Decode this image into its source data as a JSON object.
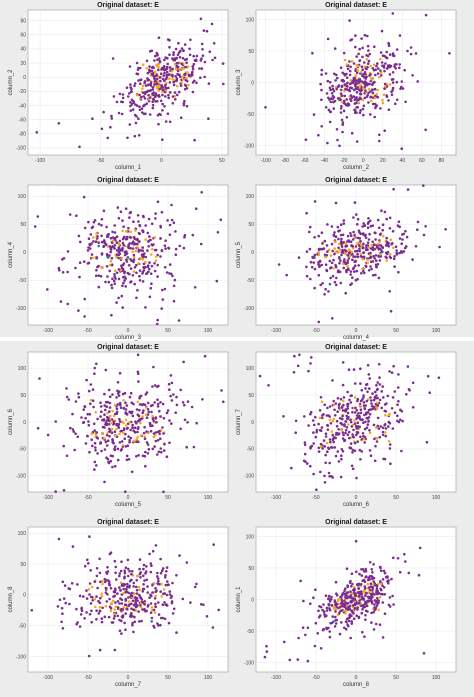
{
  "window": {
    "panel_background": "#ececec",
    "axes_background": "#ffffff",
    "grid_color": "#e6e6e6"
  },
  "series_colors": {
    "primary": "#7b2d8e",
    "secondary": "#f5a623",
    "tertiary": "#1f77b4"
  },
  "chart_data": [
    {
      "type": "scatter",
      "title": "Original dataset: E",
      "xlabel": "column_1",
      "ylabel": "column_2",
      "xlim": [
        -110,
        55
      ],
      "ylim": [
        -110,
        95
      ],
      "xticks": [
        -100,
        -50,
        0,
        50
      ],
      "yticks": [
        -100,
        -80,
        -60,
        -40,
        -20,
        0,
        20,
        40,
        60,
        80
      ],
      "grid": true,
      "x_center": 0,
      "y_center": -5,
      "x_spread": 16,
      "y_spread": 24,
      "correlation": 0.5,
      "n_points": 420
    },
    {
      "type": "scatter",
      "title": "Original dataset: E",
      "xlabel": "column_2",
      "ylabel": "column_3",
      "xlim": [
        -110,
        95
      ],
      "ylim": [
        -115,
        115
      ],
      "xticks": [
        -100,
        -80,
        -60,
        -40,
        -20,
        0,
        20,
        40,
        60,
        80
      ],
      "yticks": [
        -100,
        -50,
        0,
        50,
        100
      ],
      "grid": true,
      "x_center": 0,
      "y_center": 0,
      "x_spread": 20,
      "y_spread": 32,
      "correlation": 0.45,
      "n_points": 420
    },
    {
      "type": "scatter",
      "title": "Original dataset: E",
      "xlabel": "column_3",
      "ylabel": "column_4",
      "xlim": [
        -125,
        125
      ],
      "ylim": [
        -130,
        120
      ],
      "xticks": [
        -100,
        -50,
        0,
        50,
        100
      ],
      "yticks": [
        -100,
        -50,
        0,
        50,
        100
      ],
      "grid": true,
      "x_center": 0,
      "y_center": 0,
      "x_spread": 30,
      "y_spread": 35,
      "correlation": 0.05,
      "n_points": 420
    },
    {
      "type": "scatter",
      "title": "Original dataset: E",
      "xlabel": "column_4",
      "ylabel": "column_5",
      "xlim": [
        -125,
        125
      ],
      "ylim": [
        -130,
        120
      ],
      "xticks": [
        -100,
        -50,
        0,
        50,
        100
      ],
      "yticks": [
        -100,
        -50,
        0,
        50,
        100
      ],
      "grid": true,
      "x_center": 0,
      "y_center": 0,
      "x_spread": 32,
      "y_spread": 26,
      "correlation": 0.3,
      "n_points": 420
    },
    {
      "type": "scatter",
      "title": "Original dataset: E",
      "xlabel": "column_5",
      "ylabel": "column_6",
      "xlim": [
        -125,
        125
      ],
      "ylim": [
        -130,
        130
      ],
      "xticks": [
        -100,
        -50,
        0,
        50,
        100
      ],
      "yticks": [
        -100,
        -50,
        0,
        50,
        100
      ],
      "grid": true,
      "x_center": 0,
      "y_center": 0,
      "x_spread": 32,
      "y_spread": 38,
      "correlation": 0.1,
      "n_points": 420
    },
    {
      "type": "scatter",
      "title": "Original dataset: E",
      "xlabel": "column_6",
      "ylabel": "column_7",
      "xlim": [
        -125,
        125
      ],
      "ylim": [
        -130,
        130
      ],
      "xticks": [
        -100,
        -50,
        0,
        50,
        100
      ],
      "yticks": [
        -100,
        -50,
        0,
        50,
        100
      ],
      "grid": true,
      "x_center": 0,
      "y_center": 0,
      "x_spread": 30,
      "y_spread": 40,
      "correlation": 0.4,
      "n_points": 420
    },
    {
      "type": "scatter",
      "title": "Original dataset: E",
      "xlabel": "column_7",
      "ylabel": "column_8",
      "xlim": [
        -125,
        125
      ],
      "ylim": [
        -125,
        110
      ],
      "xticks": [
        -100,
        -50,
        0,
        50,
        100
      ],
      "yticks": [
        -100,
        -50,
        0,
        50,
        100
      ],
      "grid": true,
      "x_center": 0,
      "y_center": 0,
      "x_spread": 35,
      "y_spread": 28,
      "correlation": 0.1,
      "n_points": 420
    },
    {
      "type": "scatter",
      "title": "Original dataset: E",
      "xlabel": "column_8",
      "ylabel": "column_1",
      "xlim": [
        -125,
        125
      ],
      "ylim": [
        -115,
        115
      ],
      "xticks": [
        -100,
        -50,
        0,
        50,
        100
      ],
      "yticks": [
        -100,
        -50,
        0,
        50,
        100
      ],
      "grid": true,
      "x_center": 0,
      "y_center": 0,
      "x_spread": 22,
      "y_spread": 22,
      "correlation": 0.55,
      "n_points": 420
    }
  ]
}
